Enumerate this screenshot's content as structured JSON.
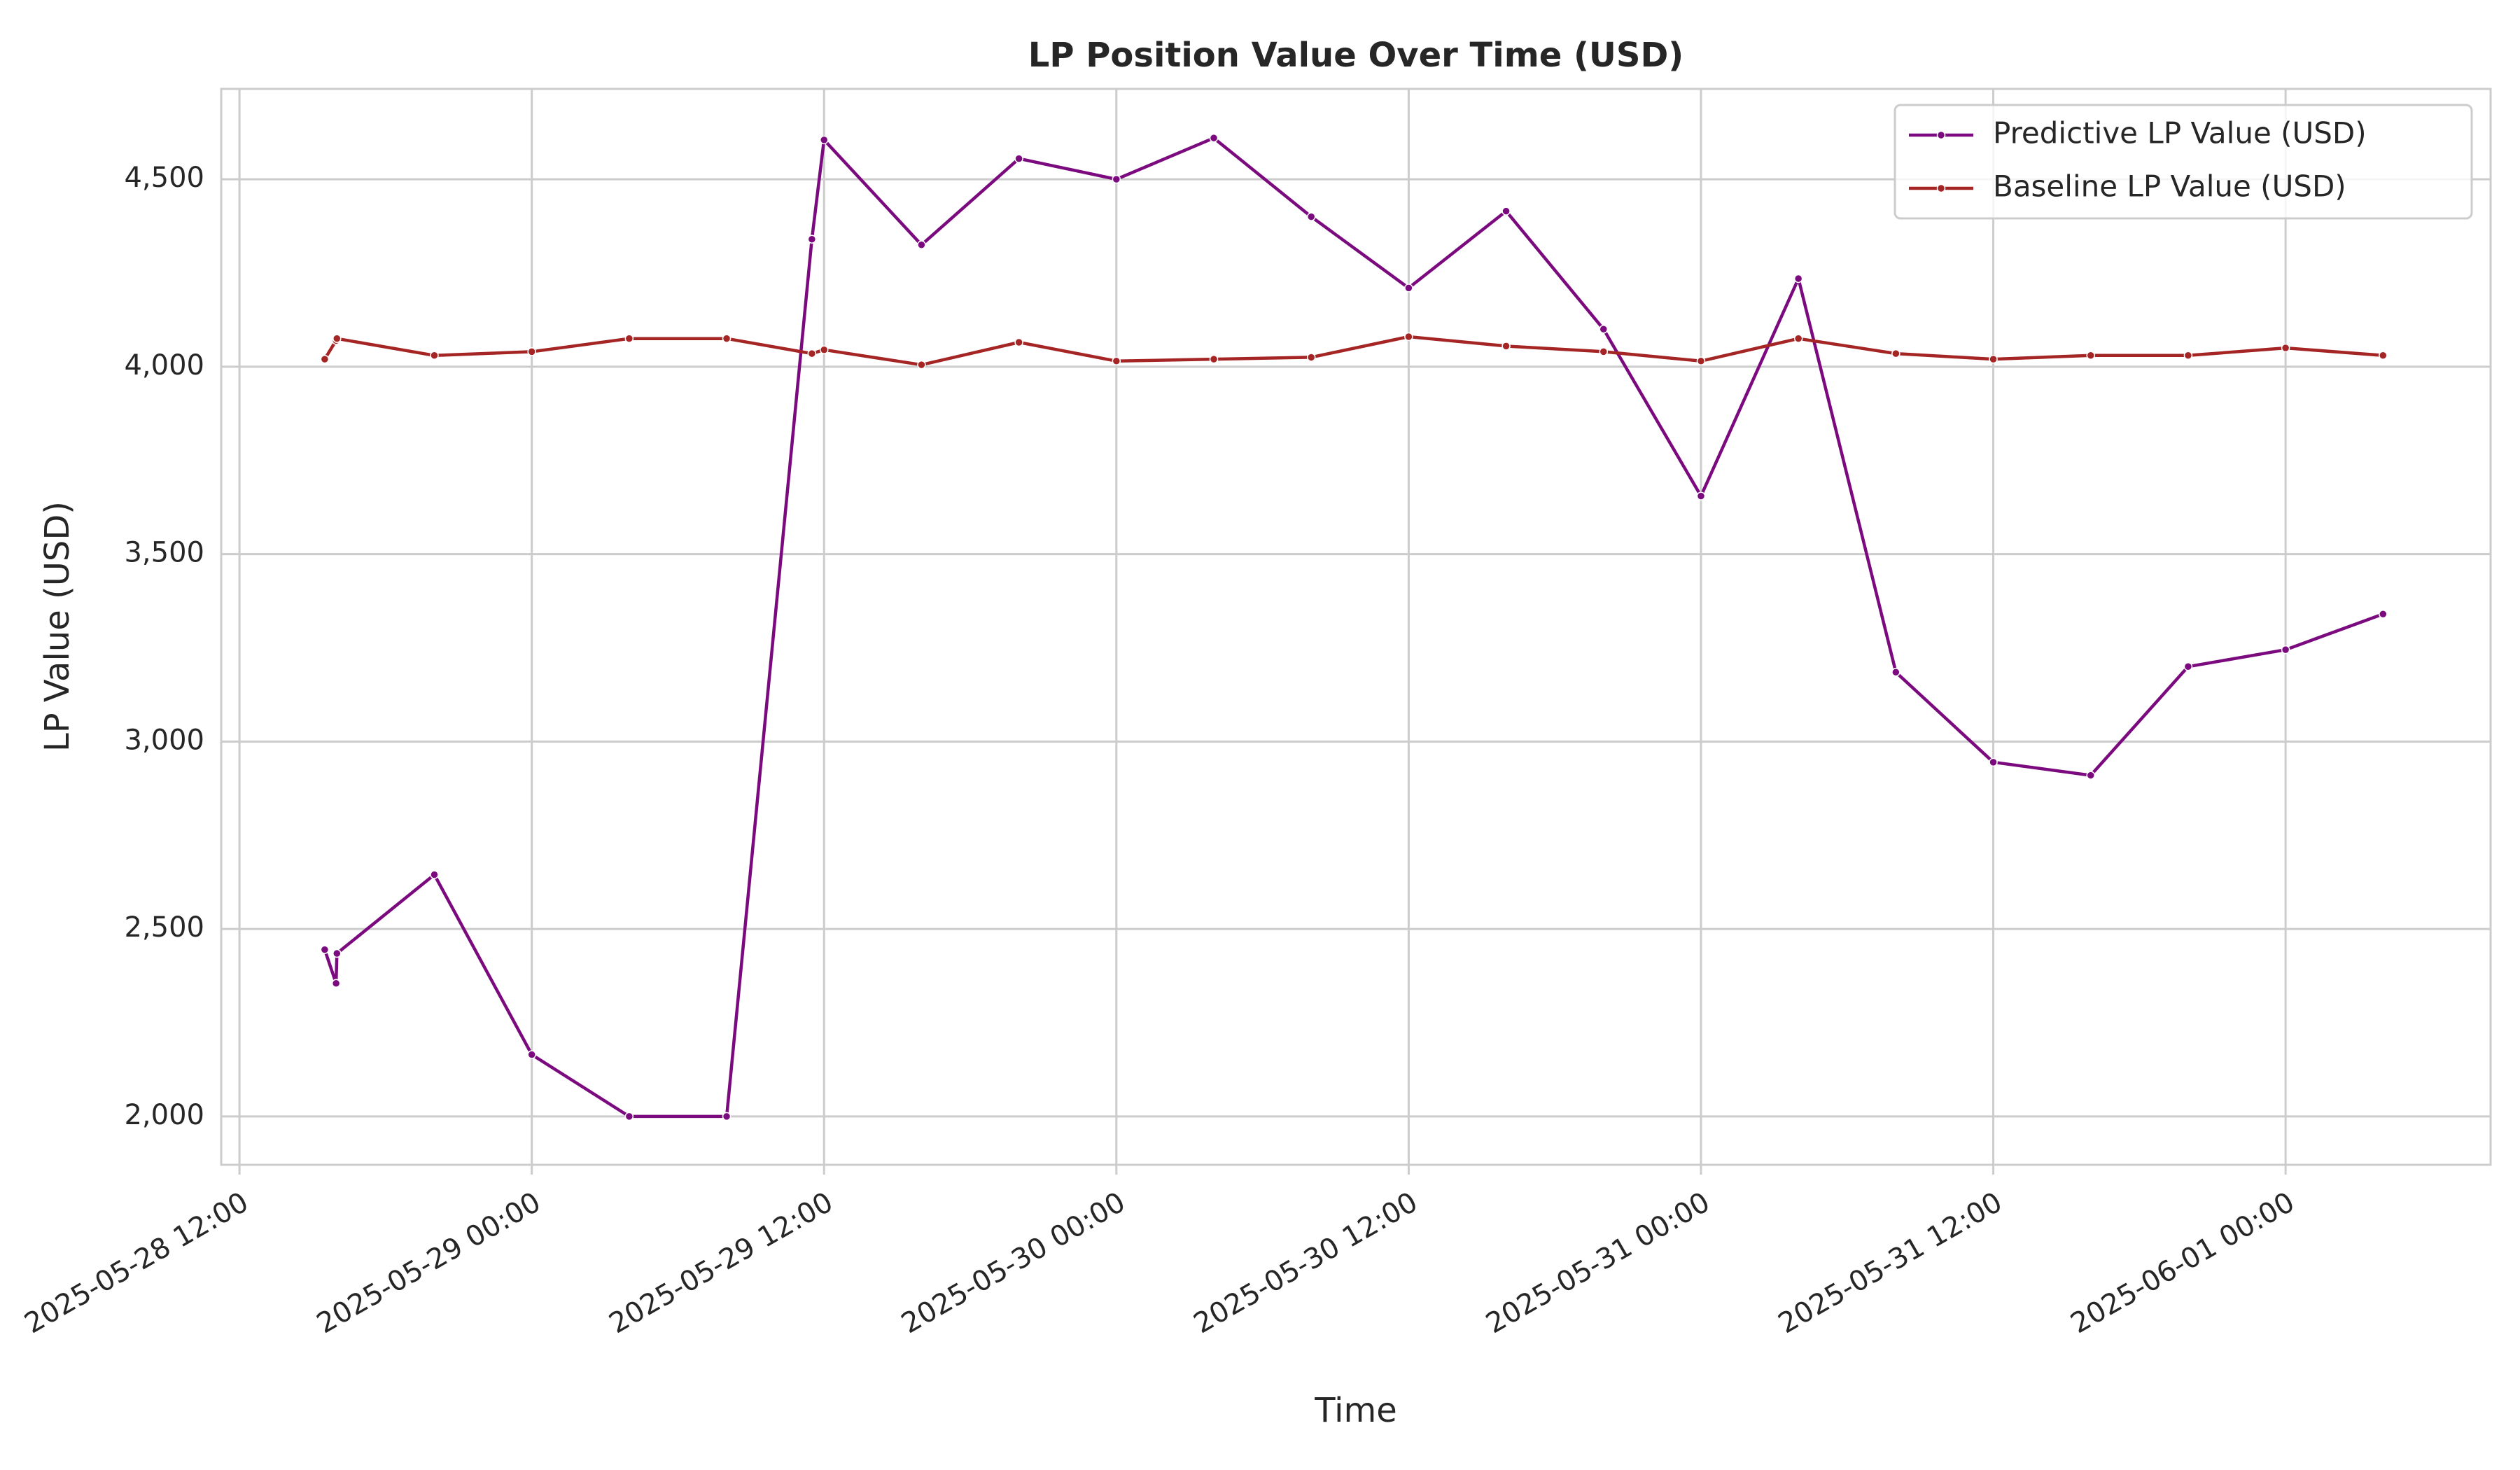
{
  "chart_data": {
    "type": "line",
    "title": "LP Position Value Over Time (USD)",
    "xlabel": "Time",
    "ylabel": "LP Value (USD)",
    "x": [
      "2025-05-28 15:30",
      "2025-05-28 15:58",
      "2025-05-28 16:00",
      "2025-05-28 20:00",
      "2025-05-29 00:00",
      "2025-05-29 04:00",
      "2025-05-29 08:00",
      "2025-05-29 11:30",
      "2025-05-29 12:00",
      "2025-05-29 16:00",
      "2025-05-29 20:00",
      "2025-05-30 00:00",
      "2025-05-30 04:00",
      "2025-05-30 08:00",
      "2025-05-30 12:00",
      "2025-05-30 16:00",
      "2025-05-30 20:00",
      "2025-05-31 00:00",
      "2025-05-31 04:00",
      "2025-05-31 08:00",
      "2025-05-31 12:00",
      "2025-05-31 16:00",
      "2025-05-31 20:00",
      "2025-06-01 00:00",
      "2025-06-01 04:00"
    ],
    "series": [
      {
        "name": "Predictive LP Value (USD)",
        "color": "#7b0a7f",
        "values": [
          2445,
          2355,
          2435,
          2645,
          2165,
          2000,
          2000,
          4340,
          4605,
          4325,
          4555,
          4500,
          4610,
          4400,
          4210,
          4415,
          4100,
          3655,
          4235,
          3185,
          2945,
          2910,
          3200,
          3245,
          3340
        ]
      },
      {
        "name": "Baseline LP Value (USD)",
        "color": "#a52525",
        "values": [
          4020,
          4070,
          4075,
          4030,
          4040,
          4075,
          4075,
          4035,
          4045,
          4005,
          4065,
          4015,
          4020,
          4025,
          4080,
          4055,
          4040,
          4015,
          4075,
          4035,
          4020,
          4030,
          4030,
          4050,
          4030
        ]
      }
    ],
    "xlim": [
      "2025-05-28 11:15",
      "2025-06-01 08:25"
    ],
    "xticks": [
      "2025-05-28 12:00",
      "2025-05-29 00:00",
      "2025-05-29 12:00",
      "2025-05-30 00:00",
      "2025-05-30 12:00",
      "2025-05-31 00:00",
      "2025-05-31 12:00",
      "2025-06-01 00:00"
    ],
    "ylim": [
      1871,
      4741
    ],
    "yticks": [
      {
        "value": 2000,
        "label": "2,000"
      },
      {
        "value": 2500,
        "label": "2,500"
      },
      {
        "value": 3000,
        "label": "3,000"
      },
      {
        "value": 3500,
        "label": "3,500"
      },
      {
        "value": 4000,
        "label": "4,000"
      },
      {
        "value": 4500,
        "label": "4,500"
      }
    ],
    "grid": true,
    "legend": "upper right"
  }
}
